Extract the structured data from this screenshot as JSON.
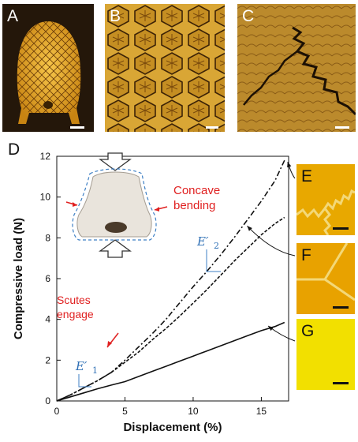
{
  "figure": {
    "panels": {
      "A": {
        "label": "A",
        "fill": "#2a1a06"
      },
      "B": {
        "label": "B",
        "fill": "#c8961e"
      },
      "C": {
        "label": "C",
        "fill": "#b8862a"
      },
      "D": {
        "label": "D"
      },
      "E": {
        "label": "E",
        "fill": "#e8a800"
      },
      "F": {
        "label": "F",
        "fill": "#e8a200"
      },
      "G": {
        "label": "G",
        "fill": "#f2e000"
      }
    },
    "inset": {
      "concave_line1": "Concave",
      "concave_line2": "bending",
      "scutes_line1": "Scutes",
      "scutes_line2": "engage",
      "e1": "E′",
      "e1_sub": "1",
      "e2": "E′",
      "e2_sub": "2"
    }
  },
  "chart_data": {
    "type": "line",
    "xlabel": "Displacement (%)",
    "ylabel": "Compressive load (N)",
    "xlim": [
      0,
      17
    ],
    "ylim": [
      0,
      12
    ],
    "xticks": [
      0,
      5,
      10,
      15
    ],
    "yticks": [
      0,
      2,
      4,
      6,
      8,
      10,
      12
    ],
    "grid": false,
    "series": [
      {
        "name": "E",
        "style": "dash-dot",
        "x": [
          0,
          1,
          2,
          3,
          4,
          5,
          6,
          7,
          8,
          9,
          10,
          11,
          12,
          13,
          14,
          15,
          16,
          16.7
        ],
        "y": [
          0,
          0.3,
          0.65,
          1.0,
          1.4,
          2.0,
          2.65,
          3.3,
          4.0,
          4.8,
          5.6,
          6.35,
          7.15,
          8.0,
          8.9,
          9.8,
          10.8,
          11.8
        ]
      },
      {
        "name": "F",
        "style": "dashed",
        "x": [
          0,
          1,
          2,
          3,
          4,
          5,
          6,
          7,
          8,
          9,
          10,
          11,
          12,
          13,
          14,
          15,
          16,
          16.7
        ],
        "y": [
          0,
          0.3,
          0.65,
          1.0,
          1.4,
          1.9,
          2.4,
          3.0,
          3.55,
          4.15,
          4.8,
          5.45,
          6.15,
          6.85,
          7.5,
          8.15,
          8.7,
          9.0
        ]
      },
      {
        "name": "G",
        "style": "solid",
        "x": [
          0,
          1,
          2,
          3,
          4,
          5,
          6,
          7,
          8,
          9,
          10,
          11,
          12,
          13,
          14,
          15,
          16,
          16.7
        ],
        "y": [
          0,
          0.2,
          0.4,
          0.6,
          0.78,
          0.95,
          1.2,
          1.45,
          1.7,
          1.95,
          2.2,
          2.45,
          2.7,
          2.95,
          3.2,
          3.45,
          3.65,
          3.85
        ]
      }
    ]
  }
}
